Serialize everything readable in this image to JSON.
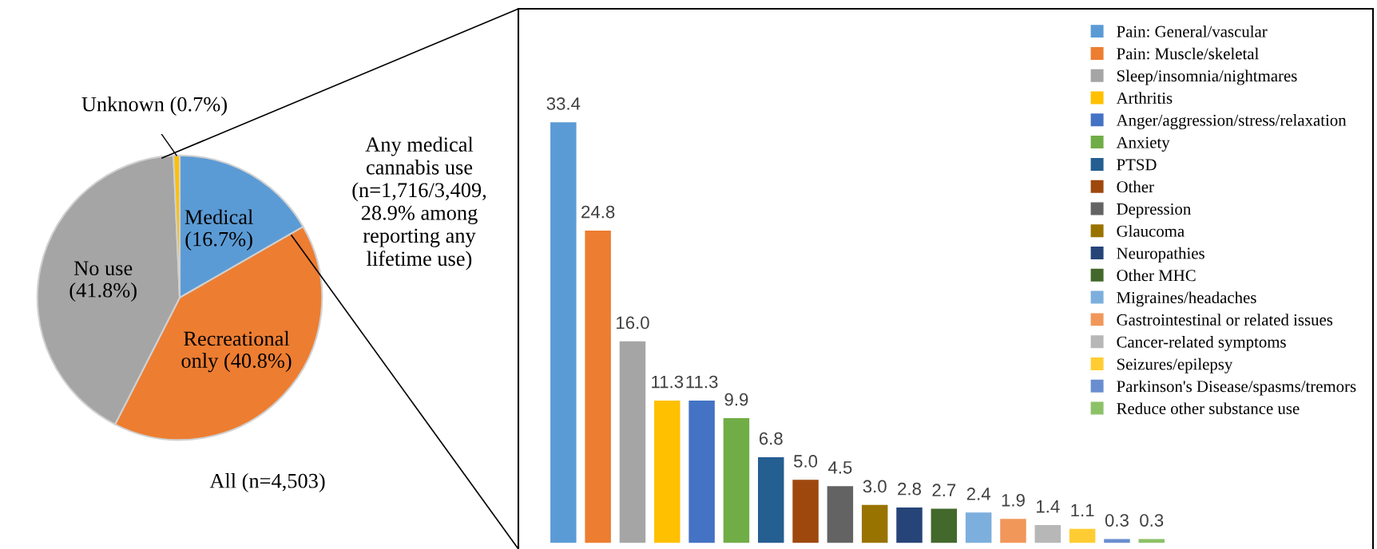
{
  "chart_data": [
    {
      "type": "pie",
      "categories": [
        "Medical\n(16.7%)",
        "Recreational\nonly (40.8%)",
        "No use\n(41.8%)",
        "Unknown (0.7%)"
      ],
      "values": [
        16.7,
        40.8,
        41.8,
        0.7
      ],
      "colors": [
        "#5b9bd5",
        "#ed7d31",
        "#a5a5a5",
        "#ffc000"
      ],
      "annotations": [
        "All (n=4,503)",
        "Any medical\ncannabis use\n(n=1,716/3,409,\n28.9% among\nreporting any\nlifetime use)"
      ]
    },
    {
      "type": "bar",
      "categories": [
        null,
        null,
        null,
        null,
        null,
        null,
        null,
        null,
        null,
        null,
        null,
        null,
        null,
        null,
        null,
        null,
        null,
        null
      ],
      "series": [
        {
          "name": "Pain: General/vascular",
          "color": "#5b9bd5",
          "values": [
            33.4,
            null,
            null,
            null,
            null,
            null,
            null,
            null,
            null,
            null,
            null,
            null,
            null,
            null,
            null,
            null,
            null,
            null
          ],
          "value_labels": [
            "33.4",
            null,
            null,
            null,
            null,
            null,
            null,
            null,
            null,
            null,
            null,
            null,
            null,
            null,
            null,
            null,
            null,
            null
          ]
        },
        {
          "name": "Pain: Muscle/skeletal",
          "color": "#ed7d31",
          "values": [
            null,
            24.8,
            null,
            null,
            null,
            null,
            null,
            null,
            null,
            null,
            null,
            null,
            null,
            null,
            null,
            null,
            null,
            null
          ],
          "value_labels": [
            null,
            "24.8",
            null,
            null,
            null,
            null,
            null,
            null,
            null,
            null,
            null,
            null,
            null,
            null,
            null,
            null,
            null,
            null
          ]
        },
        {
          "name": "Sleep/insomnia/nightmares",
          "color": "#a5a5a5",
          "values": [
            null,
            null,
            16.0,
            null,
            null,
            null,
            null,
            null,
            null,
            null,
            null,
            null,
            null,
            null,
            null,
            null,
            null,
            null
          ],
          "value_labels": [
            null,
            null,
            "16.0",
            null,
            null,
            null,
            null,
            null,
            null,
            null,
            null,
            null,
            null,
            null,
            null,
            null,
            null,
            null
          ]
        },
        {
          "name": "Arthritis",
          "color": "#ffc000",
          "values": [
            null,
            null,
            null,
            11.3,
            null,
            null,
            null,
            null,
            null,
            null,
            null,
            null,
            null,
            null,
            null,
            null,
            null,
            null
          ],
          "value_labels": [
            null,
            null,
            null,
            "11.3",
            null,
            null,
            null,
            null,
            null,
            null,
            null,
            null,
            null,
            null,
            null,
            null,
            null,
            null
          ]
        },
        {
          "name": "Anger/aggression/stress/relaxation",
          "color": "#4472c4",
          "values": [
            null,
            null,
            null,
            null,
            11.3,
            null,
            null,
            null,
            null,
            null,
            null,
            null,
            null,
            null,
            null,
            null,
            null,
            null
          ],
          "value_labels": [
            null,
            null,
            null,
            null,
            "11.3",
            null,
            null,
            null,
            null,
            null,
            null,
            null,
            null,
            null,
            null,
            null,
            null,
            null
          ]
        },
        {
          "name": "Anxiety",
          "color": "#70ad47",
          "values": [
            null,
            null,
            null,
            null,
            null,
            9.9,
            null,
            null,
            null,
            null,
            null,
            null,
            null,
            null,
            null,
            null,
            null,
            null
          ],
          "value_labels": [
            null,
            null,
            null,
            null,
            null,
            "9.9",
            null,
            null,
            null,
            null,
            null,
            null,
            null,
            null,
            null,
            null,
            null,
            null
          ]
        },
        {
          "name": "PTSD",
          "color": "#255e91",
          "values": [
            null,
            null,
            null,
            null,
            null,
            null,
            6.8,
            null,
            null,
            null,
            null,
            null,
            null,
            null,
            null,
            null,
            null,
            null
          ],
          "value_labels": [
            null,
            null,
            null,
            null,
            null,
            null,
            "6.8",
            null,
            null,
            null,
            null,
            null,
            null,
            null,
            null,
            null,
            null,
            null
          ]
        },
        {
          "name": "Other",
          "color": "#9e480e",
          "values": [
            null,
            null,
            null,
            null,
            null,
            null,
            null,
            5.0,
            null,
            null,
            null,
            null,
            null,
            null,
            null,
            null,
            null,
            null
          ],
          "value_labels": [
            null,
            null,
            null,
            null,
            null,
            null,
            null,
            "5.0",
            null,
            null,
            null,
            null,
            null,
            null,
            null,
            null,
            null,
            null
          ]
        },
        {
          "name": "Depression",
          "color": "#636363",
          "values": [
            null,
            null,
            null,
            null,
            null,
            null,
            null,
            null,
            4.5,
            null,
            null,
            null,
            null,
            null,
            null,
            null,
            null,
            null
          ],
          "value_labels": [
            null,
            null,
            null,
            null,
            null,
            null,
            null,
            null,
            "4.5",
            null,
            null,
            null,
            null,
            null,
            null,
            null,
            null,
            null
          ]
        },
        {
          "name": "Glaucoma",
          "color": "#997300",
          "values": [
            null,
            null,
            null,
            null,
            null,
            null,
            null,
            null,
            null,
            3.0,
            null,
            null,
            null,
            null,
            null,
            null,
            null,
            null
          ],
          "value_labels": [
            null,
            null,
            null,
            null,
            null,
            null,
            null,
            null,
            null,
            "3.0",
            null,
            null,
            null,
            null,
            null,
            null,
            null,
            null
          ]
        },
        {
          "name": "Neuropathies",
          "color": "#264478",
          "values": [
            null,
            null,
            null,
            null,
            null,
            null,
            null,
            null,
            null,
            null,
            2.8,
            null,
            null,
            null,
            null,
            null,
            null,
            null
          ],
          "value_labels": [
            null,
            null,
            null,
            null,
            null,
            null,
            null,
            null,
            null,
            null,
            "2.8",
            null,
            null,
            null,
            null,
            null,
            null,
            null
          ]
        },
        {
          "name": "Other MHC",
          "color": "#43682b",
          "values": [
            null,
            null,
            null,
            null,
            null,
            null,
            null,
            null,
            null,
            null,
            null,
            2.7,
            null,
            null,
            null,
            null,
            null,
            null
          ],
          "value_labels": [
            null,
            null,
            null,
            null,
            null,
            null,
            null,
            null,
            null,
            null,
            null,
            "2.7",
            null,
            null,
            null,
            null,
            null,
            null
          ]
        },
        {
          "name": "Migraines/headaches",
          "color": "#7cafdd",
          "values": [
            null,
            null,
            null,
            null,
            null,
            null,
            null,
            null,
            null,
            null,
            null,
            null,
            2.4,
            null,
            null,
            null,
            null,
            null
          ],
          "value_labels": [
            null,
            null,
            null,
            null,
            null,
            null,
            null,
            null,
            null,
            null,
            null,
            null,
            "2.4",
            null,
            null,
            null,
            null,
            null
          ]
        },
        {
          "name": "Gastrointestinal or related issues",
          "color": "#f1975a",
          "values": [
            null,
            null,
            null,
            null,
            null,
            null,
            null,
            null,
            null,
            null,
            null,
            null,
            null,
            1.9,
            null,
            null,
            null,
            null
          ],
          "value_labels": [
            null,
            null,
            null,
            null,
            null,
            null,
            null,
            null,
            null,
            null,
            null,
            null,
            null,
            "1.9",
            null,
            null,
            null,
            null
          ]
        },
        {
          "name": "Cancer-related symptoms",
          "color": "#b7b7b7",
          "values": [
            null,
            null,
            null,
            null,
            null,
            null,
            null,
            null,
            null,
            null,
            null,
            null,
            null,
            null,
            1.4,
            null,
            null,
            null
          ],
          "value_labels": [
            null,
            null,
            null,
            null,
            null,
            null,
            null,
            null,
            null,
            null,
            null,
            null,
            null,
            null,
            "1.4",
            null,
            null,
            null
          ]
        },
        {
          "name": "Seizures/epilepsy",
          "color": "#ffcd33",
          "values": [
            null,
            null,
            null,
            null,
            null,
            null,
            null,
            null,
            null,
            null,
            null,
            null,
            null,
            null,
            null,
            1.1,
            null,
            null
          ],
          "value_labels": [
            null,
            null,
            null,
            null,
            null,
            null,
            null,
            null,
            null,
            null,
            null,
            null,
            null,
            null,
            null,
            "1.1",
            null,
            null
          ]
        },
        {
          "name": "Parkinson's Disease/spasms/tremors",
          "color": "#698ed0",
          "values": [
            null,
            null,
            null,
            null,
            null,
            null,
            null,
            null,
            null,
            null,
            null,
            null,
            null,
            null,
            null,
            null,
            0.3,
            null
          ],
          "value_labels": [
            null,
            null,
            null,
            null,
            null,
            null,
            null,
            null,
            null,
            null,
            null,
            null,
            null,
            null,
            null,
            null,
            "0.3",
            null
          ]
        },
        {
          "name": "Reduce other substance use",
          "color": "#8cc168",
          "values": [
            null,
            null,
            null,
            null,
            null,
            null,
            null,
            null,
            null,
            null,
            null,
            null,
            null,
            null,
            null,
            null,
            null,
            0.3
          ],
          "value_labels": [
            null,
            null,
            null,
            null,
            null,
            null,
            null,
            null,
            null,
            null,
            null,
            null,
            null,
            null,
            null,
            null,
            null,
            "0.3"
          ]
        }
      ],
      "stacked": true,
      "legend": "top right",
      "tick_labels": false
    }
  ]
}
